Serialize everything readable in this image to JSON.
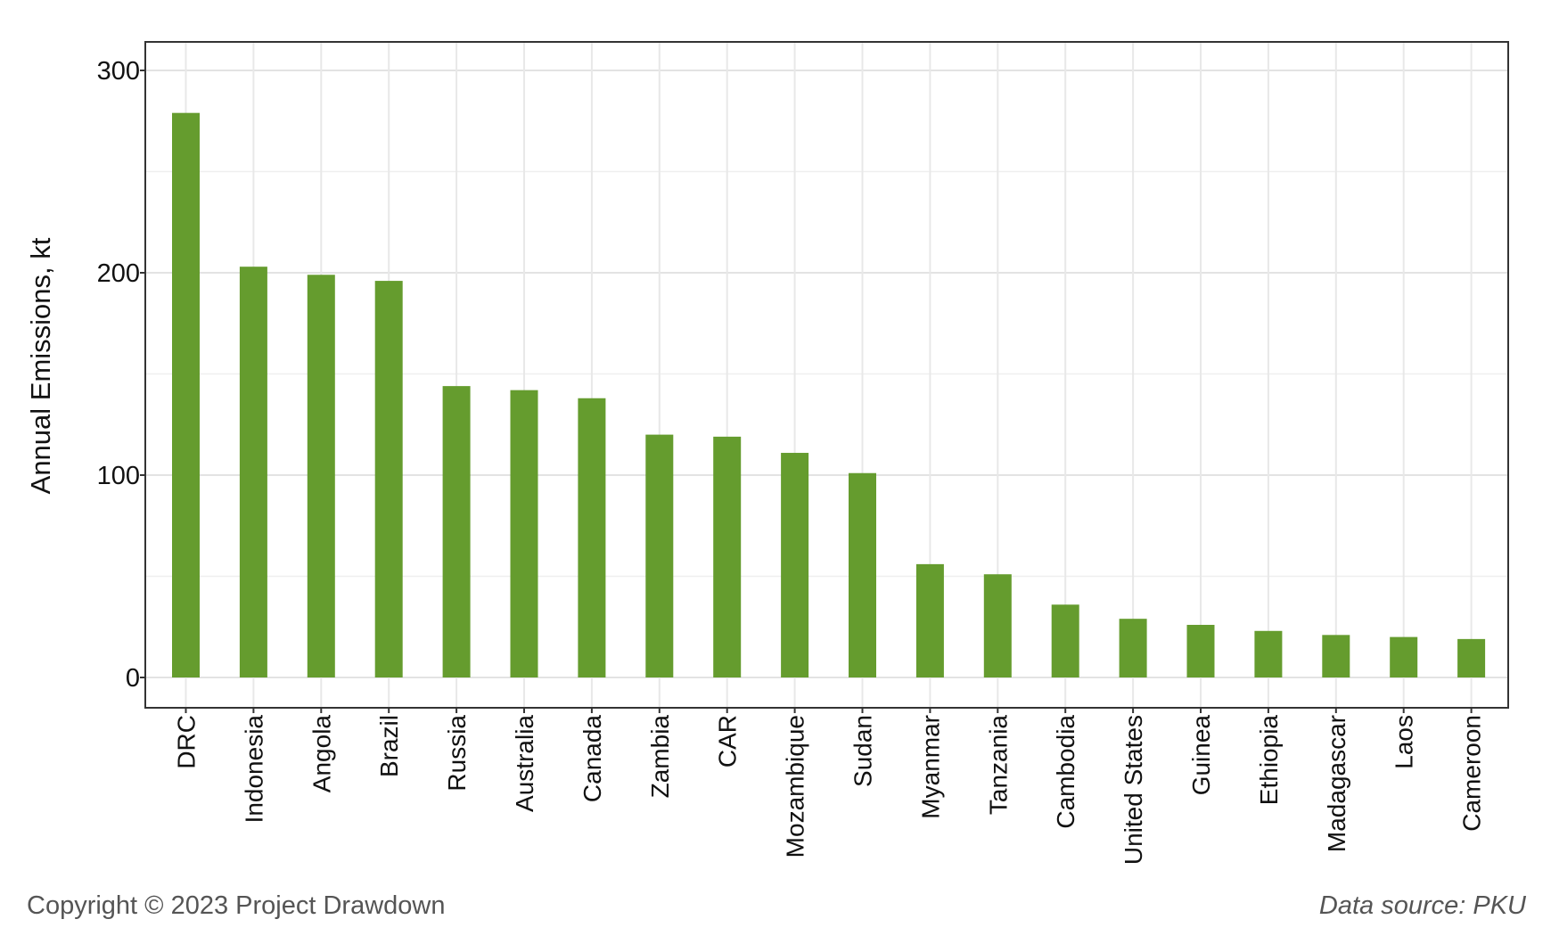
{
  "chart_data": {
    "type": "bar",
    "title": "",
    "xlabel": "",
    "ylabel": "Annual Emissions, kt",
    "ylim": [
      -15,
      315
    ],
    "yticks": [
      0,
      100,
      200,
      300
    ],
    "grid": true,
    "categories": [
      "DRC",
      "Indonesia",
      "Angola",
      "Brazil",
      "Russia",
      "Australia",
      "Canada",
      "Zambia",
      "CAR",
      "Mozambique",
      "Sudan",
      "Myanmar",
      "Tanzania",
      "Cambodia",
      "United States",
      "Guinea",
      "Ethiopia",
      "Madagascar",
      "Laos",
      "Cameroon"
    ],
    "values": [
      279,
      203,
      199,
      196,
      144,
      142,
      138,
      120,
      119,
      111,
      101,
      56,
      51,
      36,
      29,
      26,
      23,
      21,
      20,
      19
    ],
    "bar_color": "#659C2E"
  },
  "footer": {
    "copyright": "Copyright © 2023 Project Drawdown",
    "source": "Data source: PKU"
  }
}
